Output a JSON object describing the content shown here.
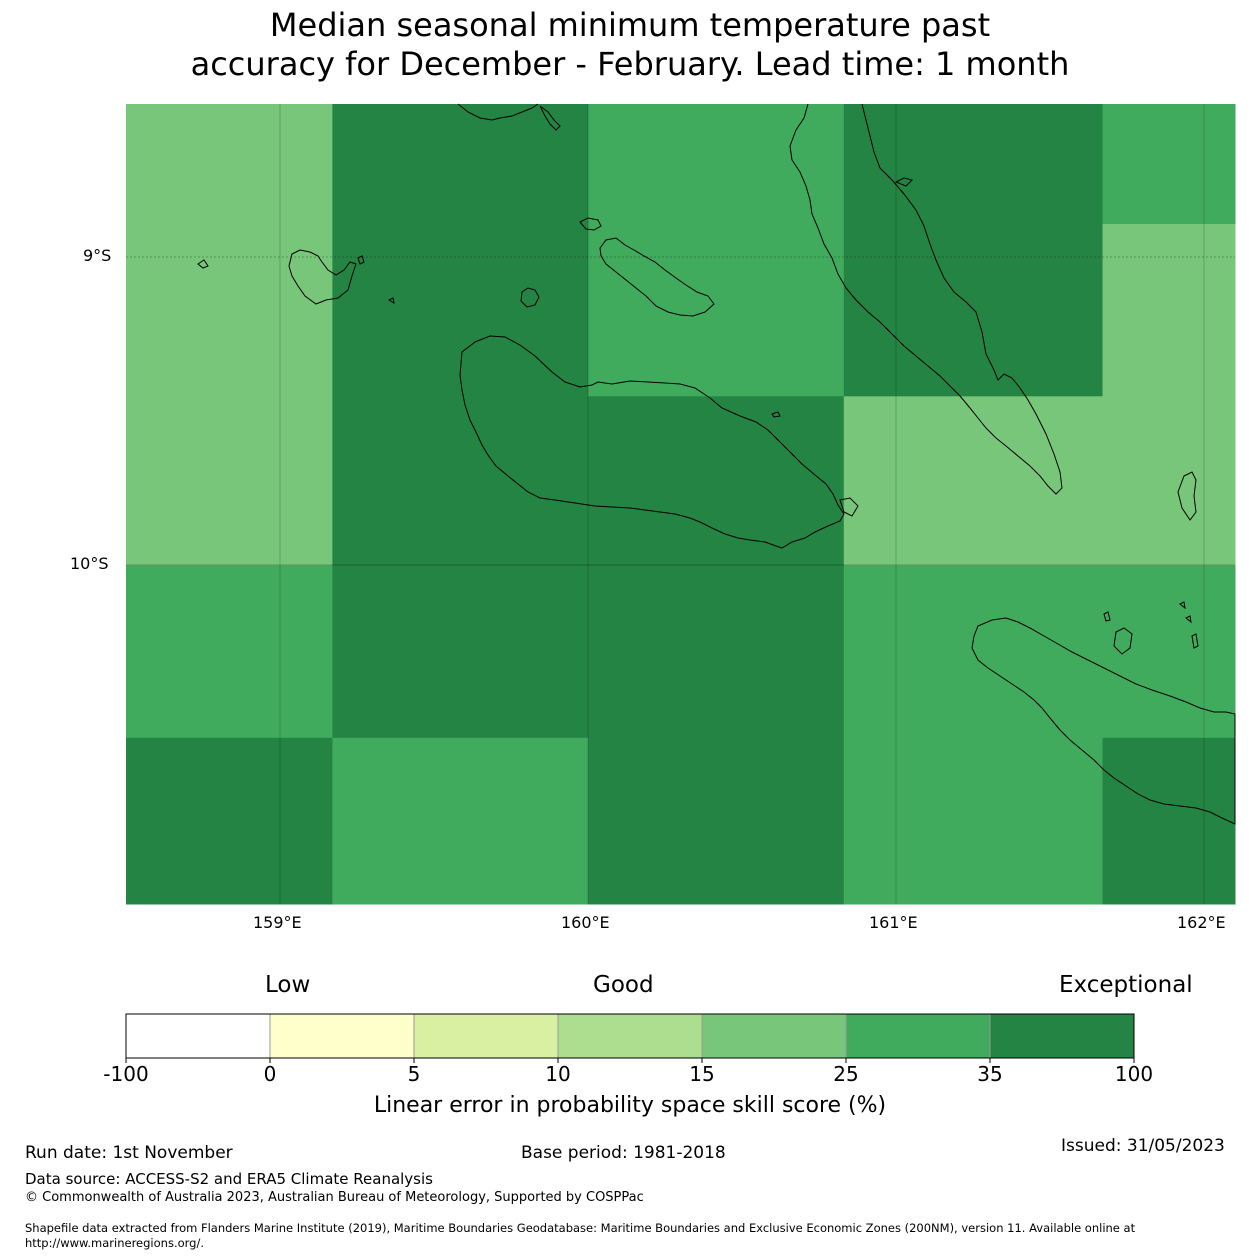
{
  "title": {
    "line1": "Median seasonal minimum temperature past",
    "line2": "accuracy for December - February. Lead time: 1 month"
  },
  "map": {
    "lon_ticks": [
      "159°E",
      "160°E",
      "161°E",
      "162°E"
    ],
    "lat_ticks": [
      "9°S",
      "10°S"
    ],
    "lon_range": [
      158.5,
      162.1
    ],
    "lat_range": [
      -11.1,
      -8.5
    ],
    "grid_cells": [
      {
        "lon0": 158.5,
        "lon1": 159.17,
        "lat0": -10.0,
        "lat1": -8.5,
        "category": "15-25"
      },
      {
        "lon0": 159.17,
        "lon1": 160.0,
        "lat0": -10.0,
        "lat1": -8.5,
        "category": "35-100"
      },
      {
        "lon0": 160.0,
        "lon1": 160.83,
        "lat0": -9.45,
        "lat1": -8.5,
        "category": "25-35"
      },
      {
        "lon0": 160.0,
        "lon1": 160.83,
        "lat0": -10.0,
        "lat1": -9.45,
        "category": "35-100"
      },
      {
        "lon0": 160.83,
        "lon1": 161.67,
        "lat0": -9.45,
        "lat1": -8.5,
        "category": "35-100"
      },
      {
        "lon0": 161.67,
        "lon1": 162.1,
        "lat0": -8.89,
        "lat1": -8.5,
        "category": "25-35"
      },
      {
        "lon0": 160.83,
        "lon1": 162.1,
        "lat0": -10.0,
        "lat1": -9.45,
        "category": "15-25"
      },
      {
        "lon0": 161.67,
        "lon1": 162.1,
        "lat0": -9.45,
        "lat1": -8.89,
        "category": "15-25"
      },
      {
        "lon0": 158.5,
        "lon1": 159.17,
        "lat0": -10.56,
        "lat1": -10.0,
        "category": "25-35"
      },
      {
        "lon0": 159.17,
        "lon1": 160.83,
        "lat0": -10.56,
        "lat1": -10.0,
        "category": "35-100"
      },
      {
        "lon0": 160.83,
        "lon1": 162.1,
        "lat0": -10.56,
        "lat1": -10.0,
        "category": "25-35"
      },
      {
        "lon0": 158.5,
        "lon1": 159.17,
        "lat0": -11.1,
        "lat1": -10.56,
        "category": "35-100"
      },
      {
        "lon0": 159.17,
        "lon1": 160.0,
        "lat0": -11.1,
        "lat1": -10.56,
        "category": "25-35"
      },
      {
        "lon0": 160.0,
        "lon1": 160.83,
        "lat0": -11.1,
        "lat1": -10.56,
        "category": "35-100"
      },
      {
        "lon0": 160.83,
        "lon1": 161.67,
        "lat0": -11.1,
        "lat1": -10.56,
        "category": "25-35"
      },
      {
        "lon0": 161.67,
        "lon1": 162.1,
        "lat0": -11.1,
        "lat1": -10.56,
        "category": "35-100"
      }
    ]
  },
  "colorbar": {
    "category_labels": {
      "low": "Low",
      "good": "Good",
      "exceptional": "Exceptional"
    },
    "ticks": [
      "-100",
      "0",
      "5",
      "10",
      "15",
      "25",
      "35",
      "100"
    ],
    "colors": [
      "#ffffff",
      "#ffffcc",
      "#d9f0a3",
      "#addd8e",
      "#78c679",
      "#41ab5d",
      "#238443"
    ],
    "label": "Linear error in probability space skill score (%)"
  },
  "category_colors": {
    "15-25": "#78c679",
    "25-35": "#41ab5d",
    "35-100": "#238443"
  },
  "footer": {
    "run_date": "Run date: 1st November",
    "base_period": "Base period: 1981-2018",
    "issued": "Issued: 31/05/2023",
    "data_source": "Data source: ACCESS-S2 and ERA5 Climate Reanalysis",
    "copyright": "© Commonwealth of Australia 2023, Australian Bureau of Meteorology, Supported by COSPPac",
    "shapefile_line1": "Shapefile data extracted from Flanders Marine Institute (2019), Maritime Boundaries Geodatabase: Maritime Boundaries and Exclusive Economic Zones (200NM), version 11. Available online at",
    "shapefile_line2": "http://www.marineregions.org/."
  }
}
